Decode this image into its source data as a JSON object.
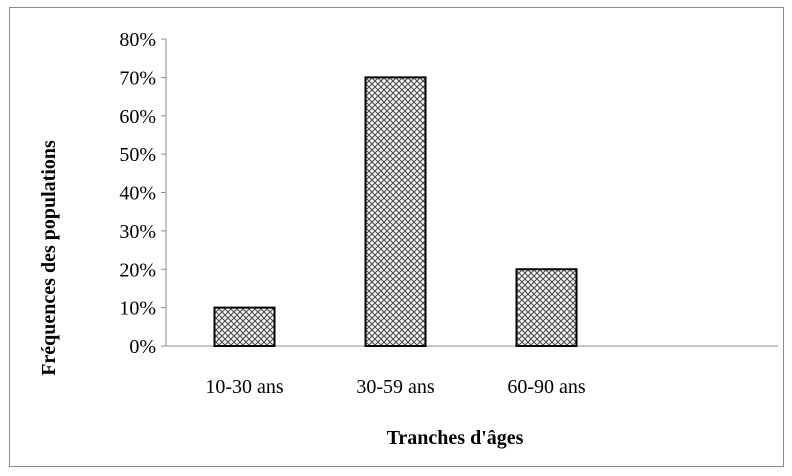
{
  "chart_data": {
    "type": "bar",
    "title": "",
    "xlabel": "Tranches d'âges",
    "ylabel": "Fréquences  des populations",
    "categories": [
      "10-30 ans",
      "30-59 ans",
      "60-90 ans"
    ],
    "values": [
      10,
      70,
      20
    ],
    "ylim": [
      0,
      80
    ],
    "ytick_step": 10,
    "ytick_suffix": "%",
    "grid": false,
    "legend": "none",
    "bar_fill": "crosshatch-pattern",
    "colors": {
      "bar_pattern": "#555555",
      "bar_background": "#ffffff",
      "bar_border": "#000000",
      "axis": "#8c8c8c",
      "frame": "#8c8c8c"
    }
  }
}
